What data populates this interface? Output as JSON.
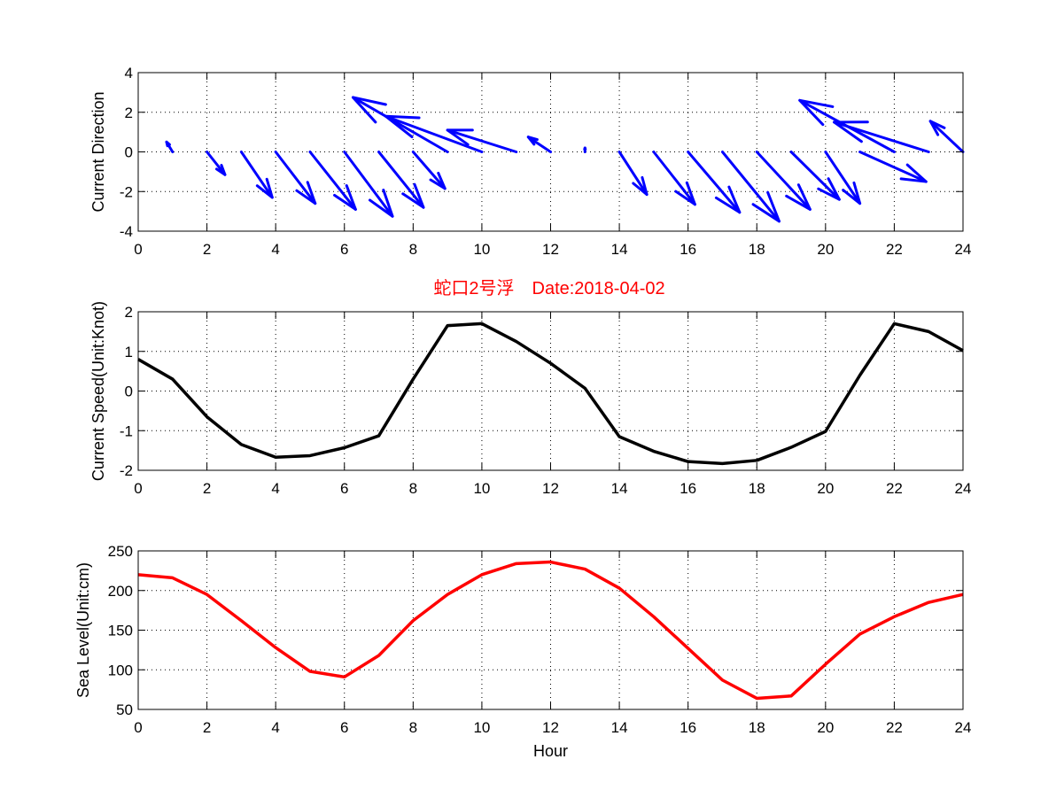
{
  "figure_title": "蛇口2号浮　Date:2018-04-02",
  "colors": {
    "direction": "#0000ff",
    "speed": "#000000",
    "sea_level": "#ff0000",
    "title": "#ff0000"
  },
  "chart_data": [
    {
      "type": "quiver",
      "ylabel": "Current Direction",
      "xlim": [
        0,
        24
      ],
      "ylim": [
        -4,
        4
      ],
      "xticks": [
        0,
        2,
        4,
        6,
        8,
        10,
        12,
        14,
        16,
        18,
        20,
        22,
        24
      ],
      "yticks": [
        -4,
        -2,
        0,
        2,
        4
      ],
      "grid": true,
      "x": [
        0,
        1,
        2,
        3,
        4,
        5,
        6,
        7,
        8,
        9,
        10,
        11,
        12,
        13,
        14,
        15,
        16,
        17,
        18,
        19,
        20,
        21,
        22,
        23,
        24
      ],
      "u": [
        0,
        -0.35,
        1.05,
        1.8,
        2.3,
        2.65,
        2.8,
        2.6,
        1.85,
        -5.5,
        -5.6,
        -4.0,
        -1.3,
        0,
        1.6,
        2.4,
        3.0,
        3.3,
        3.1,
        2.8,
        2.0,
        3.85,
        -5.5,
        -5.5,
        -1.9
      ],
      "v": [
        0,
        0.5,
        -1.15,
        -2.3,
        -2.6,
        -2.9,
        -3.25,
        -2.8,
        -1.85,
        2.75,
        1.8,
        1.1,
        0.75,
        0.2,
        -2.15,
        -2.65,
        -3.05,
        -3.5,
        -2.9,
        -2.4,
        -2.6,
        -1.5,
        2.6,
        1.5,
        1.55
      ]
    },
    {
      "type": "line",
      "title": "蛇口2号浮　Date:2018-04-02",
      "ylabel": "Current Speed(Unit:Knot)",
      "xlim": [
        0,
        24
      ],
      "ylim": [
        -2,
        2
      ],
      "xticks": [
        0,
        2,
        4,
        6,
        8,
        10,
        12,
        14,
        16,
        18,
        20,
        22,
        24
      ],
      "yticks": [
        -2,
        -1,
        0,
        1,
        2
      ],
      "grid": true,
      "x": [
        0,
        1,
        2,
        3,
        4,
        5,
        6,
        7,
        8,
        9,
        10,
        11,
        12,
        13,
        14,
        15,
        16,
        17,
        18,
        19,
        20,
        21,
        22,
        23,
        24
      ],
      "y": [
        0.8,
        0.3,
        -0.65,
        -1.35,
        -1.67,
        -1.63,
        -1.43,
        -1.13,
        0.3,
        1.65,
        1.7,
        1.25,
        0.7,
        0.07,
        -1.15,
        -1.52,
        -1.78,
        -1.83,
        -1.75,
        -1.42,
        -1.02,
        0.4,
        1.7,
        1.5,
        1.02
      ]
    },
    {
      "type": "line",
      "ylabel": "Sea Level(Unit:cm)",
      "xlabel": "Hour",
      "xlim": [
        0,
        24
      ],
      "ylim": [
        50,
        250
      ],
      "xticks": [
        0,
        2,
        4,
        6,
        8,
        10,
        12,
        14,
        16,
        18,
        20,
        22,
        24
      ],
      "yticks": [
        50,
        100,
        150,
        200,
        250
      ],
      "grid": true,
      "x": [
        0,
        1,
        2,
        3,
        4,
        5,
        6,
        7,
        8,
        9,
        10,
        11,
        12,
        13,
        14,
        15,
        16,
        17,
        18,
        19,
        20,
        21,
        22,
        23,
        24
      ],
      "y": [
        220,
        216,
        195,
        162,
        128,
        98,
        91,
        118,
        162,
        195,
        220,
        234,
        236,
        227,
        203,
        167,
        127,
        87,
        64,
        67,
        107,
        145,
        167,
        185,
        195
      ]
    }
  ]
}
